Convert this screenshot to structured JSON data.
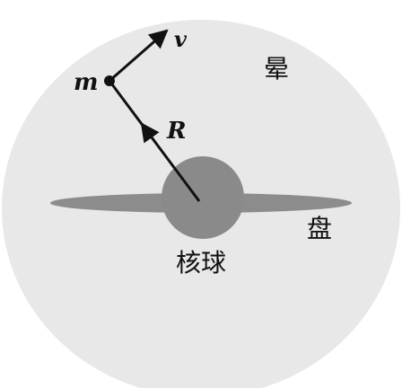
{
  "diagram": {
    "labels": {
      "halo": "晕",
      "disk": "盘",
      "bulge": "核球",
      "mass": "m",
      "velocity": "v",
      "radius": "R"
    },
    "colors": {
      "background": "#ffffff",
      "halo": "#e8e8e8",
      "disk": "#8c8c8c",
      "bulge": "#8a8a8a",
      "vector": "#111111",
      "text": "#111111"
    }
  }
}
